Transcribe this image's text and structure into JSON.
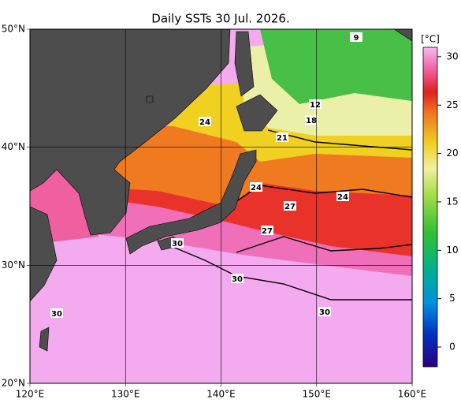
{
  "title": "Daily SSTs 30 Jul. 2026.",
  "lon_ticks": [
    {
      "value": 120,
      "label": "120°E"
    },
    {
      "value": 130,
      "label": "130°E"
    },
    {
      "value": 140,
      "label": "140°E"
    },
    {
      "value": 150,
      "label": "150°E"
    },
    {
      "value": 160,
      "label": "160°E"
    }
  ],
  "lat_ticks": [
    {
      "value": 50,
      "label": "50°N"
    },
    {
      "value": 40,
      "label": "40°N"
    },
    {
      "value": 30,
      "label": "30°N"
    },
    {
      "value": 20,
      "label": "20°N"
    }
  ],
  "colorbar": {
    "unit": "[°C]",
    "ticks": [
      30,
      25,
      20,
      15,
      10,
      5,
      0
    ]
  },
  "contour_labels": [
    9,
    12,
    18,
    21,
    24,
    24,
    24,
    27,
    27,
    30,
    30,
    30,
    30
  ]
}
